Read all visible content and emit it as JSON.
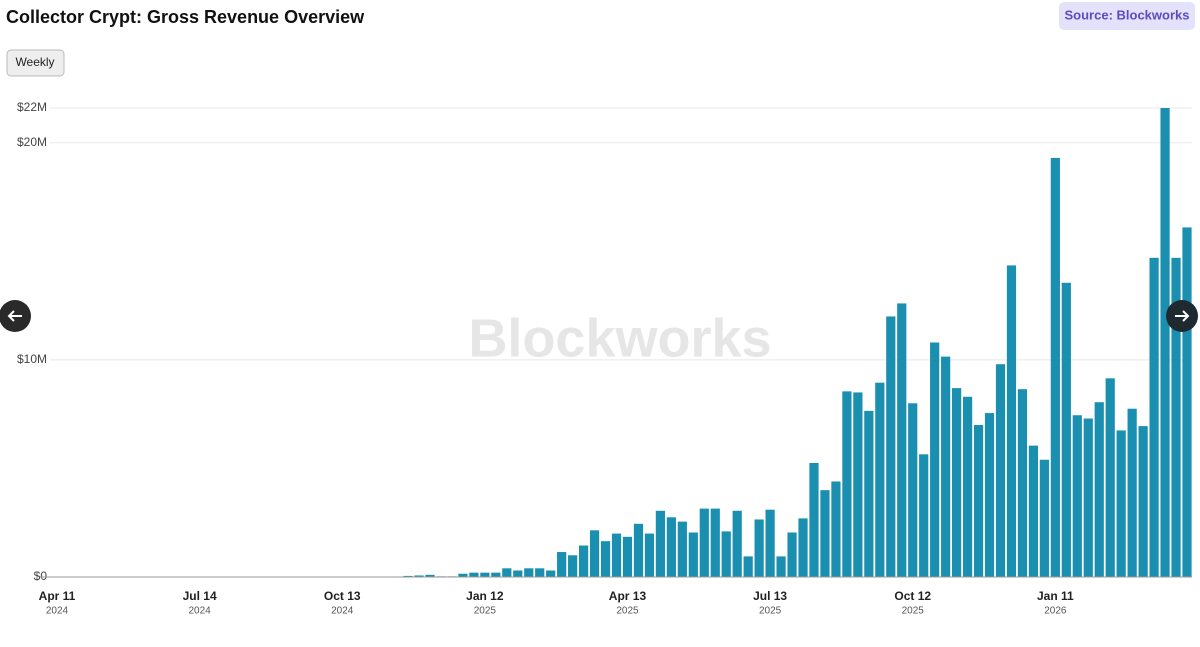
{
  "chart_data": {
    "type": "bar",
    "title": "Collector Crypt: Gross Revenue Overview",
    "source": "Source: Blockworks",
    "button": "Weekly",
    "watermark": "Blockworks",
    "color": "#1a8fb0",
    "grid": true,
    "ylim": [
      0,
      21600000
    ],
    "yticks": [
      {
        "value": 0,
        "label": "$0"
      },
      {
        "value": 10000000,
        "label": "$10M"
      },
      {
        "value": 20000000,
        "label": "$20M"
      },
      {
        "value": 21600000,
        "label": "$22M"
      }
    ],
    "categories": [
      "Apr 11",
      null,
      null,
      null,
      null,
      null,
      null,
      null,
      null,
      null,
      null,
      null,
      null,
      "Jul 14",
      null,
      null,
      null,
      null,
      null,
      null,
      null,
      null,
      null,
      null,
      null,
      null,
      "Oct 13",
      null,
      null,
      null,
      null,
      null,
      null,
      null,
      null,
      null,
      null,
      null,
      null,
      "Jan 12",
      null,
      null,
      null,
      null,
      null,
      null,
      null,
      null,
      null,
      null,
      null,
      null,
      "Apr 13",
      null,
      null,
      null,
      null,
      null,
      null,
      null,
      null,
      null,
      null,
      null,
      null,
      "Jul 13",
      null,
      null,
      null,
      null,
      null,
      null,
      null,
      null,
      null,
      null,
      null,
      null,
      "Oct 12",
      null,
      null,
      null,
      null,
      null,
      null,
      null,
      null,
      null,
      null,
      null,
      null,
      "Jan 11",
      null,
      null,
      null,
      null,
      null,
      null,
      null,
      null,
      null,
      null,
      null,
      null
    ],
    "category_years": [
      "2024",
      null,
      null,
      null,
      null,
      null,
      null,
      null,
      null,
      null,
      null,
      null,
      null,
      "2024",
      null,
      null,
      null,
      null,
      null,
      null,
      null,
      null,
      null,
      null,
      null,
      null,
      "2024",
      null,
      null,
      null,
      null,
      null,
      null,
      null,
      null,
      null,
      null,
      null,
      null,
      "2025",
      null,
      null,
      null,
      null,
      null,
      null,
      null,
      null,
      null,
      null,
      null,
      null,
      "2025",
      null,
      null,
      null,
      null,
      null,
      null,
      null,
      null,
      null,
      null,
      null,
      null,
      "2025",
      null,
      null,
      null,
      null,
      null,
      null,
      null,
      null,
      null,
      null,
      null,
      null,
      "2025",
      null,
      null,
      null,
      null,
      null,
      null,
      null,
      null,
      null,
      null,
      null,
      null,
      "2026",
      null,
      null,
      null,
      null,
      null,
      null,
      null,
      null,
      null,
      null,
      null,
      null
    ],
    "values": [
      0,
      0,
      0,
      0,
      0,
      0,
      0,
      0,
      0,
      0,
      0,
      0,
      0,
      0,
      0,
      0,
      0,
      0,
      0,
      0,
      0,
      0,
      0,
      0,
      0,
      0,
      0,
      0,
      0,
      0,
      0,
      0,
      50000,
      70000,
      100000,
      30000,
      30000,
      150000,
      200000,
      200000,
      200000,
      400000,
      300000,
      400000,
      400000,
      300000,
      1150000,
      1000000,
      1450000,
      2150000,
      1650000,
      2000000,
      1850000,
      2450000,
      2000000,
      3050000,
      2750000,
      2550000,
      2050000,
      3150000,
      3150000,
      2100000,
      3050000,
      950000,
      2650000,
      3100000,
      950000,
      2050000,
      2700000,
      5250000,
      4000000,
      4400000,
      8550000,
      8500000,
      7650000,
      8950000,
      12000000,
      12600000,
      8000000,
      5650000,
      10800000,
      10150000,
      8700000,
      8300000,
      7000000,
      7550000,
      9800000,
      14350000,
      8650000,
      6050000,
      5400000,
      19300000,
      13550000,
      7450000,
      7300000,
      8050000,
      9150000,
      6750000,
      7750000,
      6950000,
      14700000,
      21600000,
      14700000,
      16100000
    ]
  }
}
